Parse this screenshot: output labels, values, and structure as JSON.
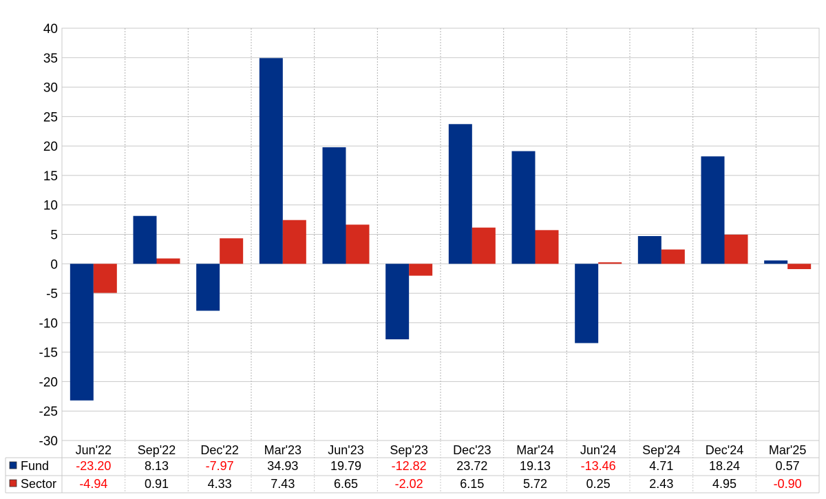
{
  "chart_data": {
    "type": "bar",
    "categories": [
      "Jun'22",
      "Sep'22",
      "Dec'22",
      "Mar'23",
      "Jun'23",
      "Sep'23",
      "Dec'23",
      "Mar'24",
      "Jun'24",
      "Sep'24",
      "Dec'24",
      "Mar'25"
    ],
    "series": [
      {
        "name": "Fund",
        "color": "#003087",
        "values": [
          -23.2,
          8.13,
          -7.97,
          34.93,
          19.79,
          -12.82,
          23.72,
          19.13,
          -13.46,
          4.71,
          18.24,
          0.57
        ],
        "labels": [
          "-23.20",
          "8.13",
          "-7.97",
          "34.93",
          "19.79",
          "-12.82",
          "23.72",
          "19.13",
          "-13.46",
          "4.71",
          "18.24",
          "0.57"
        ]
      },
      {
        "name": "Sector",
        "color": "#d52b1e",
        "values": [
          -4.94,
          0.91,
          4.33,
          7.43,
          6.65,
          -2.02,
          6.15,
          5.72,
          0.25,
          2.43,
          4.95,
          -0.9
        ],
        "labels": [
          "-4.94",
          "0.91",
          "4.33",
          "7.43",
          "6.65",
          "-2.02",
          "6.15",
          "5.72",
          "0.25",
          "2.43",
          "4.95",
          "-0.90"
        ]
      }
    ],
    "yticks": [
      "40",
      "35",
      "30",
      "25",
      "20",
      "15",
      "10",
      "5",
      "0",
      "-5",
      "-10",
      "-15",
      "-20",
      "-25",
      "-30"
    ],
    "ylim": [
      -30,
      40
    ],
    "grid": true,
    "legend": "data-table-bottom",
    "negative_label_color": "#ff0000",
    "positive_label_color": "#000000"
  }
}
